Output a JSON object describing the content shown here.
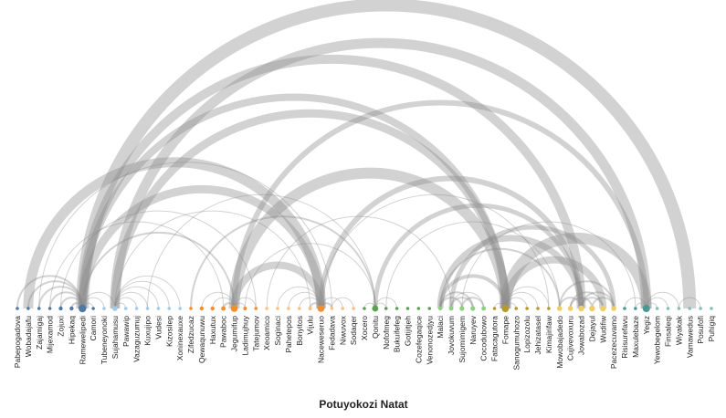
{
  "title": "Potuyokozi Natat",
  "colors": {
    "group1": "#4e79a7",
    "group2": "#a0cbe8",
    "group3": "#f28e2b",
    "group4": "#ffbe7d",
    "group5": "#59a14f",
    "group6": "#8cd17d",
    "group7": "#b6992d",
    "group8": "#f1ce63",
    "group9": "#499894",
    "group10": "#86bcb6",
    "link": "#888888"
  },
  "nodes": [
    {
      "label": "Pabepogadova",
      "group": "group1",
      "r": 1.8
    },
    {
      "label": "Wobadajafu",
      "group": "group1",
      "r": 1.8
    },
    {
      "label": "Zajamigaj",
      "group": "group1",
      "r": 1.8
    },
    {
      "label": "Mijexamod",
      "group": "group1",
      "r": 1.8
    },
    {
      "label": "Zojuxi",
      "group": "group1",
      "r": 2.2
    },
    {
      "label": "Hipekaq",
      "group": "group1",
      "r": 2.2
    },
    {
      "label": "Ramewelipedi",
      "group": "group1",
      "r": 4.2
    },
    {
      "label": "Camori",
      "group": "group1",
      "r": 1.8
    },
    {
      "label": "Tubeneyonoki",
      "group": "group2",
      "r": 1.8
    },
    {
      "label": "Sujahamusu",
      "group": "group2",
      "r": 2.8
    },
    {
      "label": "Pawawip",
      "group": "group2",
      "r": 1.8
    },
    {
      "label": "Vazaguzumuj",
      "group": "group2",
      "r": 1.8
    },
    {
      "label": "Kuxujipo",
      "group": "group2",
      "r": 1.8
    },
    {
      "label": "Vudesi",
      "group": "group2",
      "r": 1.8
    },
    {
      "label": "Kizosilep",
      "group": "group2",
      "r": 1.8
    },
    {
      "label": "Xoninexauxe",
      "group": "group2",
      "r": 1.8
    },
    {
      "label": "Zifedzucaz",
      "group": "group3",
      "r": 1.8
    },
    {
      "label": "Qewaqunuwu",
      "group": "group3",
      "r": 2.2
    },
    {
      "label": "Haxutux",
      "group": "group3",
      "r": 2.2
    },
    {
      "label": "Pawaboc",
      "group": "group3",
      "r": 2.4
    },
    {
      "label": "Jegumifup",
      "group": "group3",
      "r": 3.8
    },
    {
      "label": "Ladimujhuy",
      "group": "group3",
      "r": 2.0
    },
    {
      "label": "Tatejumov",
      "group": "group3",
      "r": 1.8
    },
    {
      "label": "Xeoamico",
      "group": "group4",
      "r": 1.8
    },
    {
      "label": "Soginaci",
      "group": "group4",
      "r": 1.8
    },
    {
      "label": "Pahetepos",
      "group": "group4",
      "r": 1.8
    },
    {
      "label": "Bonyitos",
      "group": "group4",
      "r": 1.8
    },
    {
      "label": "Vijulu",
      "group": "group4",
      "r": 2.0
    },
    {
      "label": "Naceweseruo",
      "group": "group3",
      "r": 3.8
    },
    {
      "label": "Fedadava",
      "group": "group4",
      "r": 1.8
    },
    {
      "label": "Niwuvox",
      "group": "group4",
      "r": 1.8
    },
    {
      "label": "Sodaqer",
      "group": "group4",
      "r": 1.8
    },
    {
      "label": "Xocero",
      "group": "group5",
      "r": 1.8
    },
    {
      "label": "Qonitu",
      "group": "group5",
      "r": 3.4
    },
    {
      "label": "Nofofmeg",
      "group": "group5",
      "r": 1.8
    },
    {
      "label": "Bukuifefeg",
      "group": "group5",
      "r": 1.8
    },
    {
      "label": "Gotijitjeh",
      "group": "group5",
      "r": 1.8
    },
    {
      "label": "Cozefegaqice",
      "group": "group5",
      "r": 1.8
    },
    {
      "label": "Venonozedjyu",
      "group": "group5",
      "r": 1.8
    },
    {
      "label": "Malaci",
      "group": "group6",
      "r": 2.2
    },
    {
      "label": "Jovokuvum",
      "group": "group6",
      "r": 2.4
    },
    {
      "label": "Sujomimigem",
      "group": "group6",
      "r": 2.6
    },
    {
      "label": "Naruyev",
      "group": "group6",
      "r": 2.6
    },
    {
      "label": "Cocodubowo",
      "group": "group6",
      "r": 2.4
    },
    {
      "label": "Fatacagutora",
      "group": "group7",
      "r": 1.8
    },
    {
      "label": "Fomape",
      "group": "group7",
      "r": 4.0
    },
    {
      "label": "Sanogumuhozo",
      "group": "group7",
      "r": 1.8
    },
    {
      "label": "Lopizozolu",
      "group": "group7",
      "r": 1.8
    },
    {
      "label": "Jehizatasel",
      "group": "group7",
      "r": 1.8
    },
    {
      "label": "Kimajirifaw",
      "group": "group7",
      "r": 1.8
    },
    {
      "label": "Mowobajadedo",
      "group": "group8",
      "r": 2.8
    },
    {
      "label": "Cujivevoxuru",
      "group": "group8",
      "r": 2.8
    },
    {
      "label": "Jowabozad",
      "group": "group8",
      "r": 3.2
    },
    {
      "label": "Dejayul",
      "group": "group8",
      "r": 3.2
    },
    {
      "label": "Wudifiw",
      "group": "group8",
      "r": 3.2
    },
    {
      "label": "Pacezecuvamo",
      "group": "group8",
      "r": 2.8
    },
    {
      "label": "Risisurefavu",
      "group": "group9",
      "r": 1.8
    },
    {
      "label": "Maxulebaze",
      "group": "group9",
      "r": 1.8
    },
    {
      "label": "Yegiz",
      "group": "group9",
      "r": 4.0
    },
    {
      "label": "Yewobegelom",
      "group": "group10",
      "r": 1.8
    },
    {
      "label": "Finsaleqi",
      "group": "group10",
      "r": 1.8
    },
    {
      "label": "Wiyakak",
      "group": "group10",
      "r": 1.8
    },
    {
      "label": "Vamawedus",
      "group": "group10",
      "r": 1.8
    },
    {
      "label": "Posufofi",
      "group": "group10",
      "r": 1.8
    },
    {
      "label": "Puhigiq",
      "group": "group10",
      "r": 1.8
    }
  ],
  "links": [
    {
      "source": 6,
      "target": 62,
      "weight": 14
    },
    {
      "source": 9,
      "target": 58,
      "weight": 11
    },
    {
      "source": 6,
      "target": 52,
      "weight": 10
    },
    {
      "source": 6,
      "target": 45,
      "weight": 8
    },
    {
      "source": 9,
      "target": 45,
      "weight": 9
    },
    {
      "source": 1,
      "target": 28,
      "weight": 11
    },
    {
      "source": 6,
      "target": 28,
      "weight": 9
    },
    {
      "source": 20,
      "target": 45,
      "weight": 12
    },
    {
      "source": 28,
      "target": 52,
      "weight": 6
    },
    {
      "source": 20,
      "target": 58,
      "weight": 6
    },
    {
      "source": 45,
      "target": 58,
      "weight": 12
    },
    {
      "source": 33,
      "target": 52,
      "weight": 5
    },
    {
      "source": 39,
      "target": 52,
      "weight": 7
    },
    {
      "source": 40,
      "target": 55,
      "weight": 5
    },
    {
      "source": 20,
      "target": 28,
      "weight": 8
    },
    {
      "source": 45,
      "target": 54,
      "weight": 8
    },
    {
      "source": 16,
      "target": 33,
      "weight": 2
    },
    {
      "source": 21,
      "target": 33,
      "weight": 1
    },
    {
      "source": 2,
      "target": 29,
      "weight": 1
    },
    {
      "source": 4,
      "target": 22,
      "weight": 1
    },
    {
      "source": 3,
      "target": 19,
      "weight": 1
    },
    {
      "source": 28,
      "target": 49,
      "weight": 1
    },
    {
      "source": 23,
      "target": 40,
      "weight": 1
    },
    {
      "source": 9,
      "target": 27,
      "weight": 1
    },
    {
      "source": 12,
      "target": 33,
      "weight": 1
    },
    {
      "source": 6,
      "target": 20,
      "weight": 2
    },
    {
      "source": 34,
      "target": 50,
      "weight": 1
    },
    {
      "source": 39,
      "target": 50,
      "weight": 2
    },
    {
      "source": 41,
      "target": 57,
      "weight": 1
    },
    {
      "source": 0,
      "target": 6,
      "weight": 2
    },
    {
      "source": 1,
      "target": 6,
      "weight": 2
    },
    {
      "source": 2,
      "target": 6,
      "weight": 2
    },
    {
      "source": 3,
      "target": 6,
      "weight": 2
    },
    {
      "source": 4,
      "target": 6,
      "weight": 2
    },
    {
      "source": 5,
      "target": 6,
      "weight": 2
    },
    {
      "source": 6,
      "target": 7,
      "weight": 1
    },
    {
      "source": 6,
      "target": 8,
      "weight": 1
    },
    {
      "source": 6,
      "target": 9,
      "weight": 1
    },
    {
      "source": 9,
      "target": 10,
      "weight": 1
    },
    {
      "source": 9,
      "target": 11,
      "weight": 1
    },
    {
      "source": 9,
      "target": 12,
      "weight": 1
    },
    {
      "source": 9,
      "target": 13,
      "weight": 1
    },
    {
      "source": 9,
      "target": 14,
      "weight": 1
    },
    {
      "source": 9,
      "target": 15,
      "weight": 1
    },
    {
      "source": 17,
      "target": 20,
      "weight": 1
    },
    {
      "source": 18,
      "target": 20,
      "weight": 1
    },
    {
      "source": 19,
      "target": 20,
      "weight": 2
    },
    {
      "source": 20,
      "target": 21,
      "weight": 1
    },
    {
      "source": 20,
      "target": 22,
      "weight": 1
    },
    {
      "source": 24,
      "target": 28,
      "weight": 1
    },
    {
      "source": 25,
      "target": 28,
      "weight": 1
    },
    {
      "source": 26,
      "target": 28,
      "weight": 1
    },
    {
      "source": 27,
      "target": 28,
      "weight": 2
    },
    {
      "source": 28,
      "target": 29,
      "weight": 2
    },
    {
      "source": 28,
      "target": 30,
      "weight": 1
    },
    {
      "source": 29,
      "target": 31,
      "weight": 1
    },
    {
      "source": 32,
      "target": 33,
      "weight": 1
    },
    {
      "source": 33,
      "target": 34,
      "weight": 1
    },
    {
      "source": 33,
      "target": 35,
      "weight": 1
    },
    {
      "source": 39,
      "target": 41,
      "weight": 2
    },
    {
      "source": 39,
      "target": 42,
      "weight": 2
    },
    {
      "source": 40,
      "target": 42,
      "weight": 2
    },
    {
      "source": 41,
      "target": 43,
      "weight": 2
    },
    {
      "source": 40,
      "target": 43,
      "weight": 1
    },
    {
      "source": 39,
      "target": 45,
      "weight": 4
    },
    {
      "source": 44,
      "target": 45,
      "weight": 1
    },
    {
      "source": 45,
      "target": 46,
      "weight": 1
    },
    {
      "source": 45,
      "target": 47,
      "weight": 1
    },
    {
      "source": 45,
      "target": 48,
      "weight": 1
    },
    {
      "source": 45,
      "target": 49,
      "weight": 1
    },
    {
      "source": 50,
      "target": 52,
      "weight": 2
    },
    {
      "source": 51,
      "target": 53,
      "weight": 2
    },
    {
      "source": 52,
      "target": 54,
      "weight": 2
    },
    {
      "source": 51,
      "target": 54,
      "weight": 2
    },
    {
      "source": 52,
      "target": 55,
      "weight": 2
    },
    {
      "source": 50,
      "target": 55,
      "weight": 2
    },
    {
      "source": 53,
      "target": 55,
      "weight": 2
    },
    {
      "source": 56,
      "target": 58,
      "weight": 1
    },
    {
      "source": 57,
      "target": 58,
      "weight": 1
    },
    {
      "source": 58,
      "target": 59,
      "weight": 1
    },
    {
      "source": 58,
      "target": 60,
      "weight": 1
    },
    {
      "source": 58,
      "target": 61,
      "weight": 1
    },
    {
      "source": 61,
      "target": 63,
      "weight": 1
    }
  ]
}
